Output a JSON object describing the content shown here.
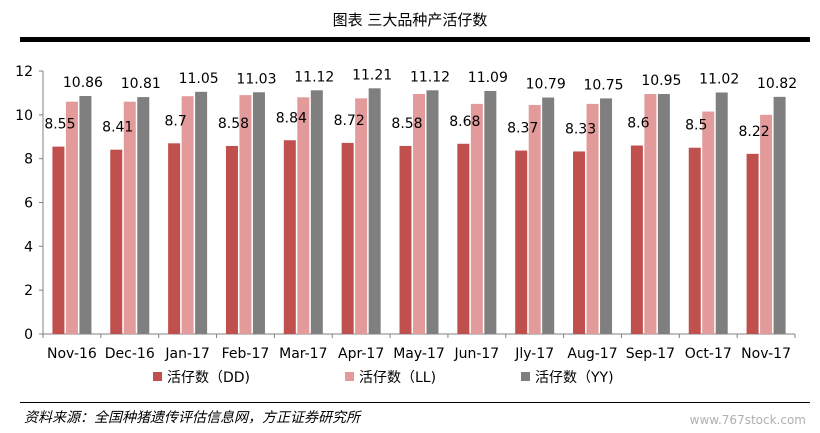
{
  "page": {
    "title": "图表 三大品种产活仔数",
    "source": "资料来源：全国种猪遗传评估信息网，方正证券研究所",
    "watermark": "www.767stock.com"
  },
  "chart_data": {
    "type": "bar",
    "categories": [
      "Nov-16",
      "Dec-16",
      "Jan-17",
      "Feb-17",
      "Mar-17",
      "Apr-17",
      "May-17",
      "Jun-17",
      "Jly-17",
      "Aug-17",
      "Sep-17",
      "Oct-17",
      "Nov-17"
    ],
    "series": [
      {
        "name": "活仔数（DD)",
        "color": "#c0504d",
        "values": [
          8.55,
          8.41,
          8.7,
          8.58,
          8.84,
          8.72,
          8.58,
          8.68,
          8.37,
          8.33,
          8.6,
          8.5,
          8.22
        ],
        "labels": [
          "8.55",
          "8.41",
          "8.7",
          "8.58",
          "8.84",
          "8.72",
          "8.58",
          "8.68",
          "8.37",
          "8.33",
          "8.6",
          "8.5",
          "8.22"
        ]
      },
      {
        "name": "活仔数（LL)",
        "color": "#e39a9a",
        "values": [
          10.6,
          10.6,
          10.85,
          10.9,
          10.8,
          10.75,
          10.95,
          10.5,
          10.45,
          10.5,
          10.95,
          10.15,
          10.0
        ],
        "labels": null
      },
      {
        "name": "活仔数（YY)",
        "color": "#7f7f7f",
        "values": [
          10.86,
          10.81,
          11.05,
          11.03,
          11.12,
          11.21,
          11.12,
          11.09,
          10.79,
          10.75,
          10.95,
          11.02,
          10.82
        ],
        "labels": [
          "10.86",
          "10.81",
          "11.05",
          "11.03",
          "11.12",
          "11.21",
          "11.12",
          "11.09",
          "10.79",
          "10.75",
          "10.95",
          "11.02",
          "10.82"
        ]
      }
    ],
    "ylim": [
      0,
      12
    ],
    "yticks": [
      "0",
      "2",
      "4",
      "6",
      "8",
      "10",
      "12"
    ],
    "grid": false,
    "legend": "bottom"
  }
}
